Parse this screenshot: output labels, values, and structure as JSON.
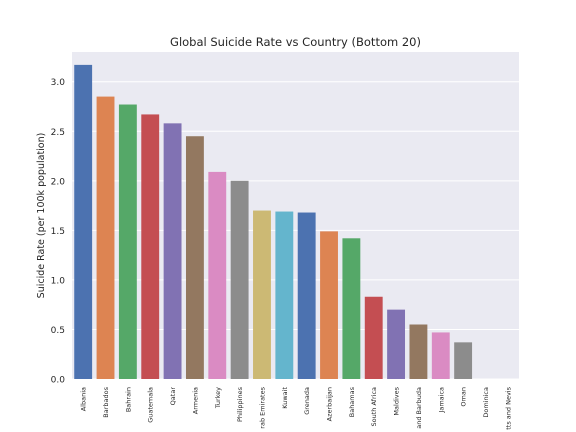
{
  "chart_data": {
    "type": "bar",
    "title": "Global Suicide Rate vs Country (Bottom 20)",
    "xlabel": "",
    "ylabel": "Suicide Rate (per 100k population)",
    "ylim": [
      0,
      3.3
    ],
    "yticks": [
      "0.0",
      "0.5",
      "1.0",
      "1.5",
      "2.0",
      "2.5",
      "3.0"
    ],
    "grid": true,
    "categories": [
      "Albania",
      "Barbados",
      "Bahrain",
      "Guatemala",
      "Qatar",
      "Armenia",
      "Turkey",
      "Philippines",
      "rab Emirates",
      "Kuwait",
      "Grenada",
      "Azerbaijan",
      "Bahamas",
      "South Africa",
      "Maldives",
      "and Barbuda",
      "Jamaica",
      "Oman",
      "Dominica",
      "tts and Nevis"
    ],
    "values": [
      3.17,
      2.85,
      2.77,
      2.67,
      2.58,
      2.45,
      2.09,
      2.0,
      1.7,
      1.69,
      1.68,
      1.49,
      1.42,
      0.83,
      0.7,
      0.55,
      0.47,
      0.37,
      0.0,
      0.0
    ],
    "colors": [
      "#4c72b0",
      "#dd8452",
      "#55a868",
      "#c44e52",
      "#8172b3",
      "#937860",
      "#da8bc3",
      "#8c8c8c",
      "#ccb974",
      "#64b5cd"
    ],
    "background": "#eaeaf2"
  }
}
